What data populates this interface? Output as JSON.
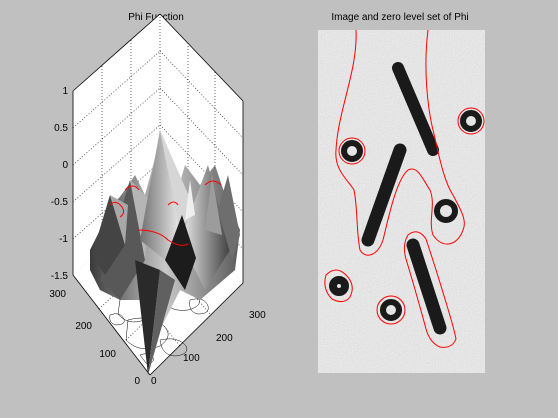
{
  "window": {
    "background": "#c0c0c0"
  },
  "left_plot": {
    "title": "Phi Function",
    "z_ticks": [
      "1",
      "0.5",
      "0",
      "-0.5",
      "-1",
      "-1.5"
    ],
    "y_ticks": [
      "300",
      "200",
      "100",
      "0"
    ],
    "x_ticks": [
      "0",
      "100",
      "200",
      "300"
    ],
    "surface_color": "#9a9a9a",
    "zero_level_color": "#ff0000"
  },
  "right_plot": {
    "title": "Image and zero level set of Phi",
    "contour_color": "#ff0000",
    "image_background": "#dedede"
  }
}
